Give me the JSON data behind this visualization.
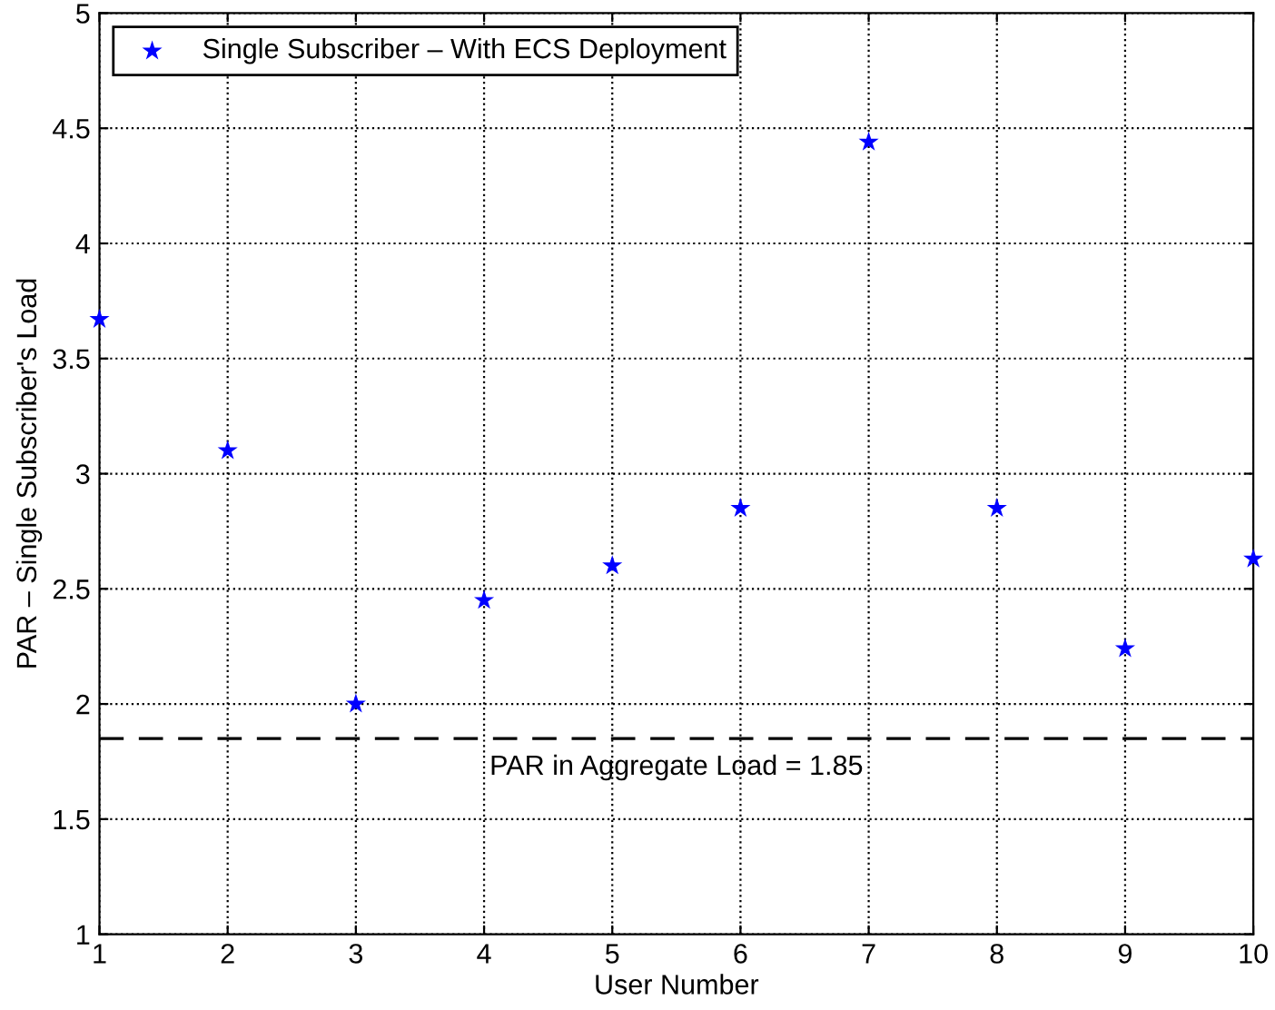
{
  "chart_data": {
    "type": "scatter",
    "xlabel": "User Number",
    "ylabel": "PAR – Single Subscriber's Load",
    "x": [
      1,
      2,
      3,
      4,
      5,
      6,
      7,
      8,
      9,
      10
    ],
    "series": [
      {
        "name": "Single Subscriber – With ECS Deployment",
        "color": "#0000ff",
        "values": [
          3.67,
          3.1,
          2.0,
          2.45,
          2.6,
          2.85,
          4.44,
          2.85,
          2.24,
          2.63
        ]
      }
    ],
    "xlim": [
      1,
      10
    ],
    "xticks": [
      1,
      2,
      3,
      4,
      5,
      6,
      7,
      8,
      9,
      10
    ],
    "ylim": [
      1,
      5
    ],
    "yticks": [
      1,
      1.5,
      2,
      2.5,
      3,
      3.5,
      4,
      4.5,
      5
    ],
    "ref_lines": [
      {
        "axis": "y",
        "value": 1.85,
        "label": "PAR in Aggregate Load = 1.85",
        "color": "#000000",
        "line_style": "dashed"
      }
    ],
    "grid": true,
    "legend": "top left",
    "marker": "star"
  }
}
